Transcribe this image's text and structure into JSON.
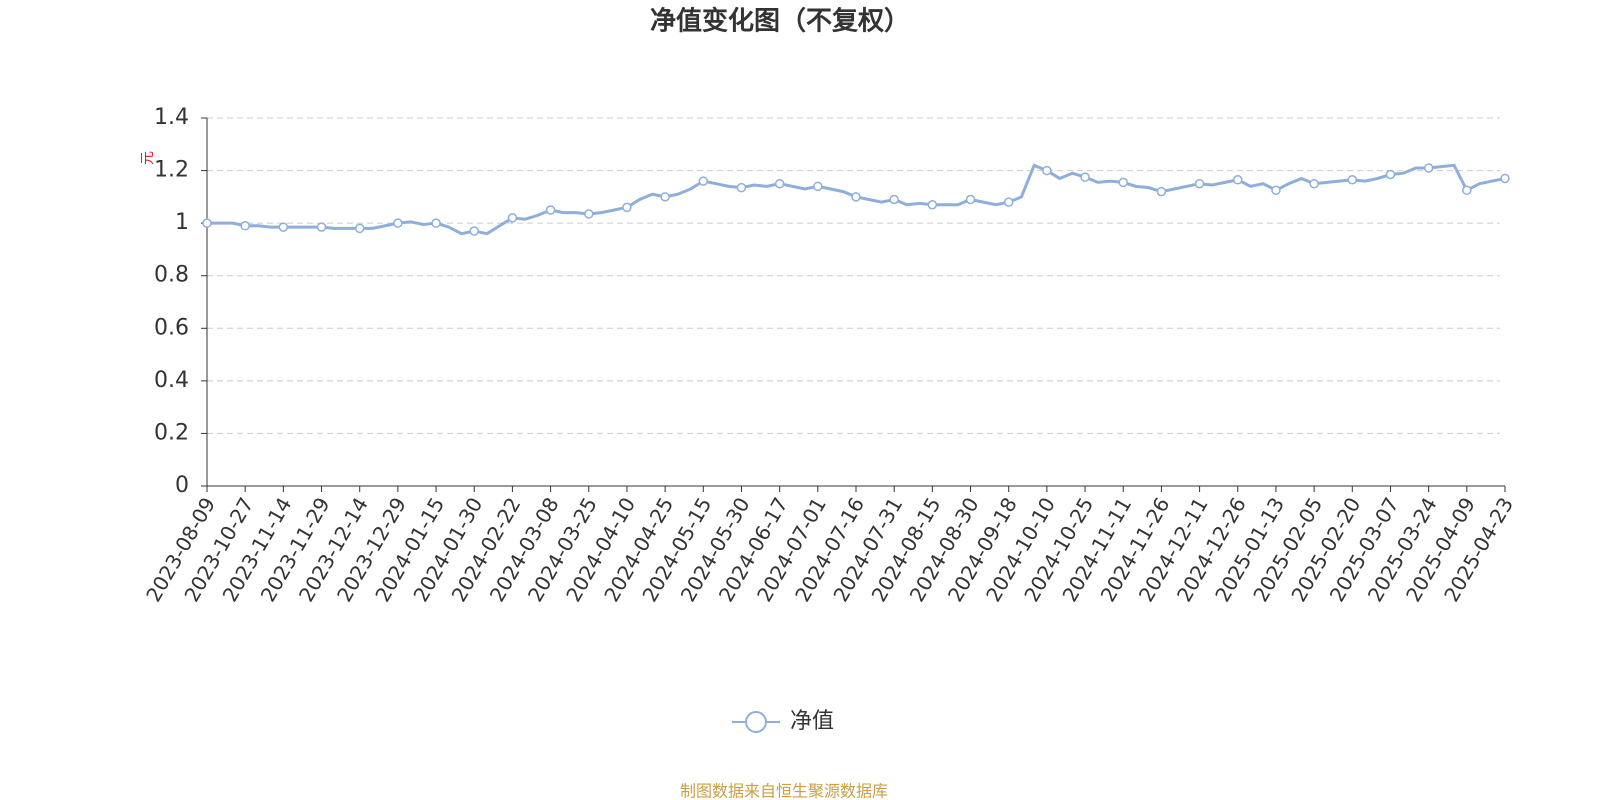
{
  "chart_data": {
    "type": "line",
    "title": "净值变化图（不复权）",
    "y_label": "元",
    "source": "制图数据来自恒生聚源数据库",
    "categories": [
      "2023-08-09",
      null,
      null,
      "2023-10-27",
      null,
      null,
      "2023-11-14",
      null,
      null,
      "2023-11-29",
      null,
      null,
      "2023-12-14",
      null,
      null,
      "2023-12-29",
      null,
      null,
      "2024-01-15",
      null,
      null,
      "2024-01-30",
      null,
      null,
      "2024-02-22",
      null,
      null,
      "2024-03-08",
      null,
      null,
      "2024-03-25",
      null,
      null,
      "2024-04-10",
      null,
      null,
      "2024-04-25",
      null,
      null,
      "2024-05-15",
      null,
      null,
      "2024-05-30",
      null,
      null,
      "2024-06-17",
      null,
      null,
      "2024-07-01",
      null,
      null,
      "2024-07-16",
      null,
      null,
      "2024-07-31",
      null,
      null,
      "2024-08-15",
      null,
      null,
      "2024-08-30",
      null,
      null,
      "2024-09-18",
      null,
      null,
      "2024-10-10",
      null,
      null,
      "2024-10-25",
      null,
      null,
      "2024-11-11",
      null,
      null,
      "2024-11-26",
      null,
      null,
      "2024-12-11",
      null,
      null,
      "2024-12-26",
      null,
      null,
      "2025-01-13",
      null,
      null,
      "2025-02-05",
      null,
      null,
      "2025-02-20",
      null,
      null,
      "2025-03-07",
      null,
      null,
      "2025-03-24",
      null,
      null,
      "2025-04-09",
      null,
      null,
      "2025-04-23"
    ],
    "series": [
      {
        "name": "净值",
        "color": "#8eaedb",
        "values": [
          1.0,
          1.0,
          1.0,
          0.99,
          0.99,
          0.985,
          0.985,
          0.985,
          0.985,
          0.985,
          0.98,
          0.98,
          0.98,
          0.98,
          0.99,
          1.0,
          1.005,
          0.995,
          1.0,
          0.985,
          0.96,
          0.97,
          0.96,
          0.99,
          1.02,
          1.015,
          1.03,
          1.05,
          1.04,
          1.04,
          1.035,
          1.04,
          1.05,
          1.06,
          1.09,
          1.11,
          1.1,
          1.11,
          1.13,
          1.16,
          1.15,
          1.14,
          1.135,
          1.145,
          1.14,
          1.15,
          1.14,
          1.13,
          1.14,
          1.13,
          1.12,
          1.1,
          1.09,
          1.08,
          1.09,
          1.07,
          1.075,
          1.07,
          1.07,
          1.07,
          1.09,
          1.08,
          1.07,
          1.08,
          1.1,
          1.22,
          1.2,
          1.17,
          1.19,
          1.175,
          1.155,
          1.16,
          1.155,
          1.14,
          1.135,
          1.12,
          1.13,
          1.14,
          1.15,
          1.145,
          1.155,
          1.165,
          1.14,
          1.15,
          1.125,
          1.15,
          1.17,
          1.15,
          1.155,
          1.16,
          1.165,
          1.16,
          1.17,
          1.185,
          1.19,
          1.21,
          1.21,
          1.215,
          1.22,
          1.125,
          1.15,
          1.16,
          1.17
        ]
      }
    ],
    "ylim": [
      0,
      1.4
    ],
    "yticks": [
      0,
      0.2,
      0.4,
      0.6,
      0.8,
      1,
      1.2,
      1.4
    ],
    "grid": true,
    "legend": "bottom"
  }
}
